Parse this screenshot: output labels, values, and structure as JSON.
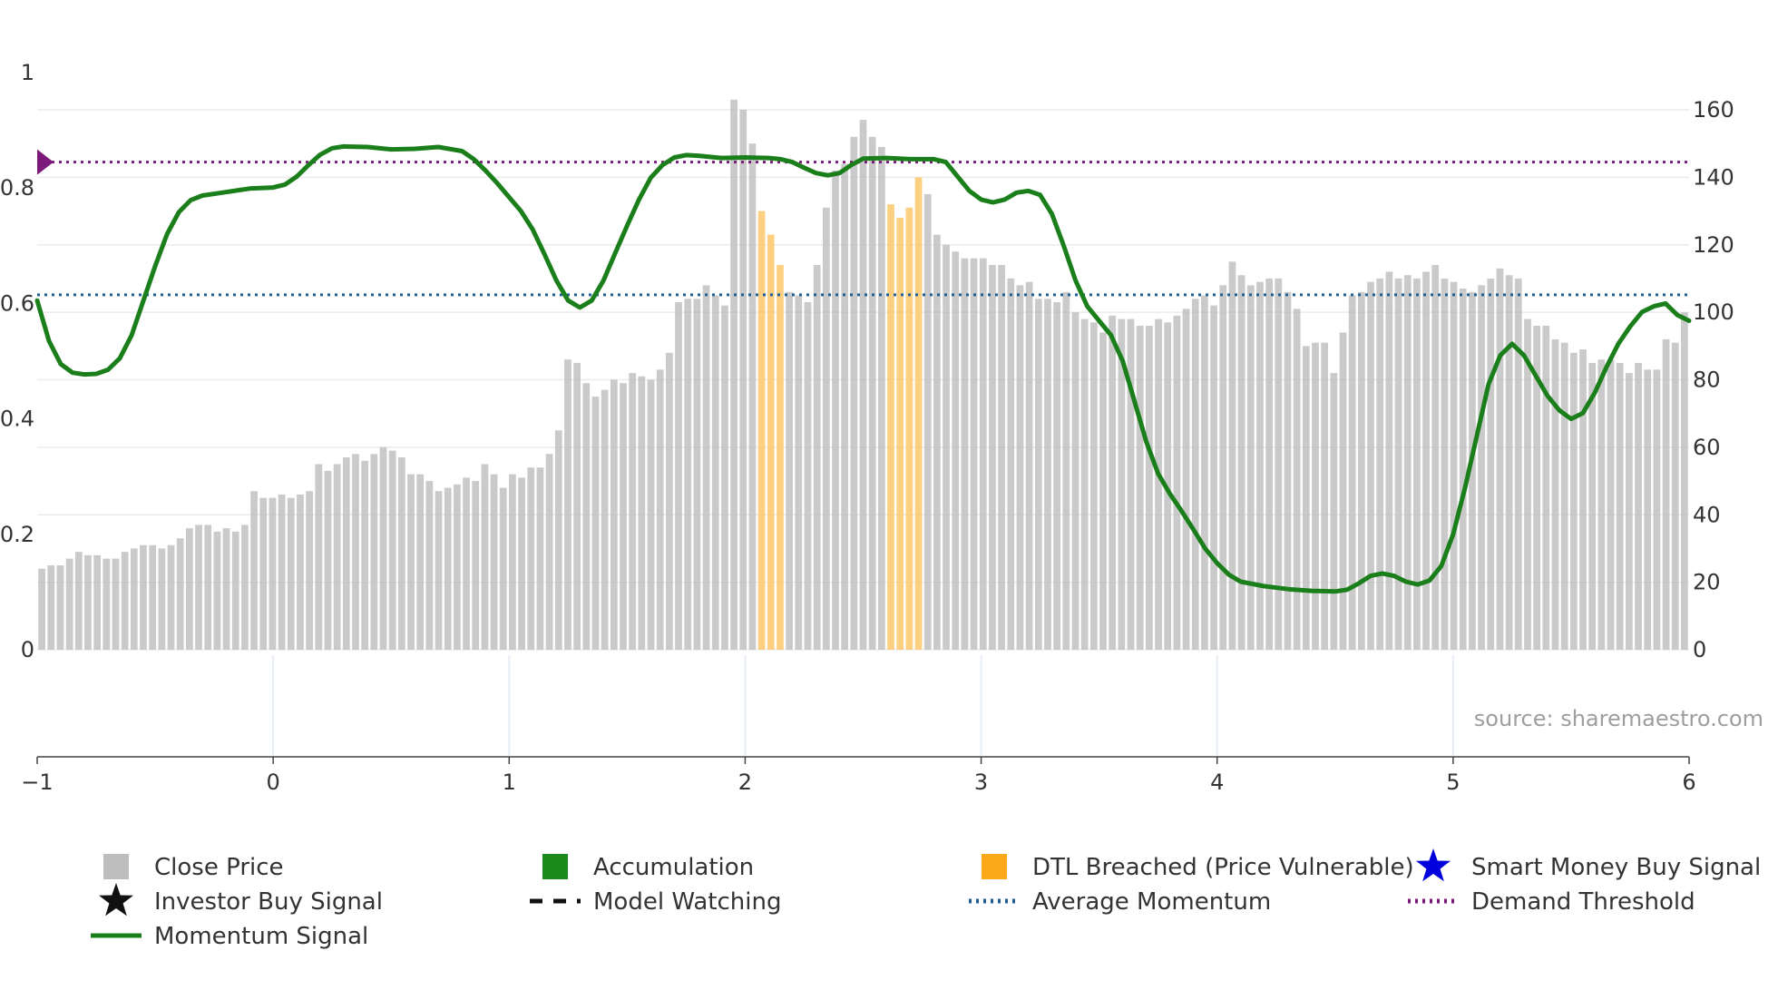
{
  "chart_data": {
    "type": "bar",
    "source_label": "source: sharemaestro.com",
    "x_axis": {
      "range": [
        -1,
        6
      ],
      "ticks": [
        "−1",
        "0",
        "1",
        "2",
        "3",
        "4",
        "5",
        "6"
      ]
    },
    "y_left": {
      "range": [
        0,
        1
      ],
      "ticks": [
        "0",
        "0.2",
        "0.4",
        "0.6",
        "0.8",
        "1"
      ]
    },
    "y_right": {
      "range": [
        0,
        160
      ],
      "ticks": [
        "0",
        "20",
        "40",
        "60",
        "80",
        "100",
        "120",
        "140",
        "160"
      ]
    },
    "demand_threshold": 0.845,
    "average_momentum": 0.615,
    "series": [
      {
        "name": "Close Price",
        "color": "#bdbdbd",
        "highlight_color": "#fbc86a",
        "values": [
          24,
          25,
          25,
          27,
          29,
          28,
          28,
          27,
          27,
          29,
          30,
          31,
          31,
          30,
          31,
          33,
          36,
          37,
          37,
          35,
          36,
          35,
          37,
          47,
          45,
          45,
          46,
          45,
          46,
          47,
          55,
          53,
          55,
          57,
          58,
          56,
          58,
          60,
          59,
          57,
          52,
          52,
          50,
          47,
          48,
          49,
          51,
          50,
          55,
          52,
          48,
          52,
          51,
          54,
          54,
          58,
          65,
          86,
          85,
          79,
          75,
          77,
          80,
          79,
          82,
          81,
          80,
          83,
          88,
          103,
          104,
          104,
          108,
          105,
          102,
          163,
          160,
          150,
          130,
          123,
          114,
          106,
          105,
          103,
          114,
          131,
          142,
          144,
          152,
          157,
          152,
          149,
          132,
          128,
          131,
          140,
          135,
          123,
          120,
          118,
          116,
          116,
          116,
          114,
          114,
          110,
          108,
          109,
          104,
          104,
          103,
          106,
          100,
          98,
          97,
          94,
          99,
          98,
          98,
          96,
          96,
          98,
          97,
          99,
          101,
          104,
          105,
          102,
          108,
          115,
          111,
          108,
          109,
          110,
          110,
          106,
          101,
          90,
          91,
          91,
          82,
          94,
          105,
          106,
          109,
          110,
          112,
          110,
          111,
          110,
          112,
          114,
          110,
          109,
          107,
          106,
          108,
          110,
          113,
          111,
          110,
          98,
          96,
          96,
          92,
          91,
          88,
          89,
          85,
          86,
          86,
          85,
          82,
          85,
          83,
          83,
          92,
          91,
          100
        ]
      },
      {
        "name": "Momentum Signal",
        "color": "#1a7f1a",
        "points": [
          [
            -1,
            0.605
          ],
          [
            -0.95,
            0.535
          ],
          [
            -0.9,
            0.495
          ],
          [
            -0.85,
            0.48
          ],
          [
            -0.8,
            0.477
          ],
          [
            -0.75,
            0.478
          ],
          [
            -0.7,
            0.485
          ],
          [
            -0.65,
            0.505
          ],
          [
            -0.6,
            0.545
          ],
          [
            -0.55,
            0.605
          ],
          [
            -0.5,
            0.665
          ],
          [
            -0.45,
            0.72
          ],
          [
            -0.4,
            0.758
          ],
          [
            -0.35,
            0.779
          ],
          [
            -0.3,
            0.787
          ],
          [
            -0.2,
            0.793
          ],
          [
            -0.1,
            0.799
          ],
          [
            0,
            0.801
          ],
          [
            0.05,
            0.806
          ],
          [
            0.1,
            0.82
          ],
          [
            0.15,
            0.84
          ],
          [
            0.2,
            0.858
          ],
          [
            0.25,
            0.869
          ],
          [
            0.3,
            0.872
          ],
          [
            0.4,
            0.871
          ],
          [
            0.5,
            0.867
          ],
          [
            0.6,
            0.868
          ],
          [
            0.7,
            0.871
          ],
          [
            0.8,
            0.864
          ],
          [
            0.85,
            0.85
          ],
          [
            0.9,
            0.83
          ],
          [
            0.95,
            0.808
          ],
          [
            1,
            0.784
          ],
          [
            1.05,
            0.76
          ],
          [
            1.1,
            0.728
          ],
          [
            1.15,
            0.685
          ],
          [
            1.2,
            0.64
          ],
          [
            1.25,
            0.605
          ],
          [
            1.3,
            0.593
          ],
          [
            1.35,
            0.605
          ],
          [
            1.4,
            0.64
          ],
          [
            1.45,
            0.688
          ],
          [
            1.5,
            0.735
          ],
          [
            1.55,
            0.78
          ],
          [
            1.6,
            0.818
          ],
          [
            1.65,
            0.84
          ],
          [
            1.7,
            0.853
          ],
          [
            1.75,
            0.857
          ],
          [
            1.8,
            0.856
          ],
          [
            1.9,
            0.852
          ],
          [
            2,
            0.853
          ],
          [
            2.1,
            0.852
          ],
          [
            2.15,
            0.85
          ],
          [
            2.2,
            0.845
          ],
          [
            2.25,
            0.835
          ],
          [
            2.3,
            0.826
          ],
          [
            2.35,
            0.822
          ],
          [
            2.4,
            0.826
          ],
          [
            2.45,
            0.84
          ],
          [
            2.5,
            0.851
          ],
          [
            2.6,
            0.852
          ],
          [
            2.7,
            0.85
          ],
          [
            2.8,
            0.85
          ],
          [
            2.85,
            0.845
          ],
          [
            2.9,
            0.82
          ],
          [
            2.95,
            0.795
          ],
          [
            3,
            0.78
          ],
          [
            3.05,
            0.775
          ],
          [
            3.1,
            0.78
          ],
          [
            3.15,
            0.792
          ],
          [
            3.2,
            0.795
          ],
          [
            3.25,
            0.788
          ],
          [
            3.3,
            0.755
          ],
          [
            3.35,
            0.7
          ],
          [
            3.4,
            0.64
          ],
          [
            3.45,
            0.595
          ],
          [
            3.5,
            0.57
          ],
          [
            3.55,
            0.545
          ],
          [
            3.6,
            0.5
          ],
          [
            3.65,
            0.43
          ],
          [
            3.7,
            0.36
          ],
          [
            3.75,
            0.305
          ],
          [
            3.8,
            0.27
          ],
          [
            3.85,
            0.24
          ],
          [
            3.9,
            0.208
          ],
          [
            3.95,
            0.175
          ],
          [
            4,
            0.15
          ],
          [
            4.05,
            0.13
          ],
          [
            4.1,
            0.118
          ],
          [
            4.2,
            0.11
          ],
          [
            4.3,
            0.105
          ],
          [
            4.4,
            0.102
          ],
          [
            4.5,
            0.101
          ],
          [
            4.55,
            0.104
          ],
          [
            4.6,
            0.115
          ],
          [
            4.65,
            0.128
          ],
          [
            4.7,
            0.132
          ],
          [
            4.75,
            0.128
          ],
          [
            4.8,
            0.118
          ],
          [
            4.85,
            0.113
          ],
          [
            4.9,
            0.12
          ],
          [
            4.95,
            0.145
          ],
          [
            5,
            0.2
          ],
          [
            5.05,
            0.28
          ],
          [
            5.1,
            0.37
          ],
          [
            5.15,
            0.46
          ],
          [
            5.2,
            0.51
          ],
          [
            5.25,
            0.53
          ],
          [
            5.3,
            0.51
          ],
          [
            5.35,
            0.475
          ],
          [
            5.4,
            0.44
          ],
          [
            5.45,
            0.415
          ],
          [
            5.5,
            0.4
          ],
          [
            5.55,
            0.41
          ],
          [
            5.6,
            0.445
          ],
          [
            5.65,
            0.49
          ],
          [
            5.7,
            0.53
          ],
          [
            5.75,
            0.56
          ],
          [
            5.8,
            0.585
          ],
          [
            5.85,
            0.595
          ],
          [
            5.9,
            0.6
          ],
          [
            5.95,
            0.58
          ],
          [
            6,
            0.57
          ]
        ]
      },
      {
        "name": "Average Momentum",
        "color": "#1f5f99"
      },
      {
        "name": "Demand Threshold",
        "color": "#7b1a7b"
      }
    ],
    "legend": [
      {
        "label": "Close Price",
        "marker": "square",
        "color": "#bdbdbd"
      },
      {
        "label": "Accumulation",
        "marker": "square",
        "color": "#1a8a1a"
      },
      {
        "label": "DTL Breached (Price Vulnerable)",
        "marker": "square",
        "color": "#fba91a"
      },
      {
        "label": "Smart Money Buy Signal",
        "marker": "star",
        "color": "#0000dd"
      },
      {
        "label": "Investor Buy Signal",
        "marker": "star",
        "color": "#111111"
      },
      {
        "label": "Model Watching",
        "marker": "dashed-line",
        "color": "#111111"
      },
      {
        "label": "Average Momentum",
        "marker": "dotted-line",
        "color": "#1f5f99"
      },
      {
        "label": "Demand Threshold",
        "marker": "dotted-line",
        "color": "#7b1a7b"
      },
      {
        "label": "Momentum Signal",
        "marker": "solid-line",
        "color": "#1a7f1a"
      }
    ]
  }
}
